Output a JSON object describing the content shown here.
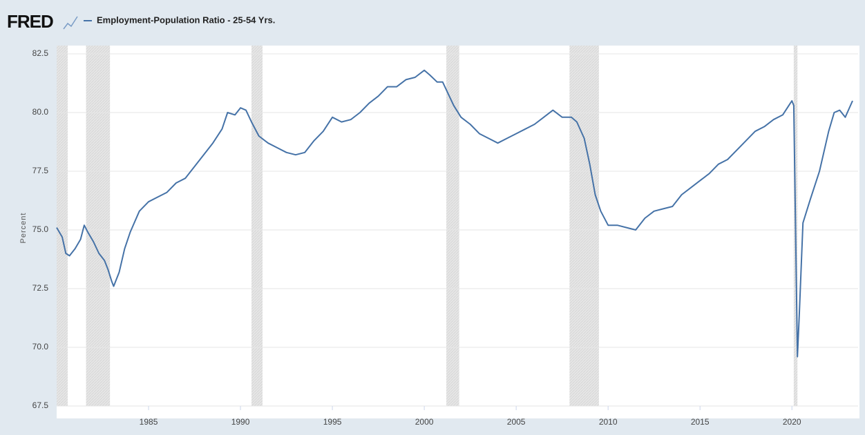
{
  "chart_data": {
    "type": "line",
    "logo": "FRED",
    "ylabel": "Percent",
    "xlim": [
      1980.0,
      2023.6
    ],
    "ylim": [
      67.5,
      82.5
    ],
    "xticks": [
      1985,
      1990,
      1995,
      2000,
      2005,
      2010,
      2015,
      2020
    ],
    "yticks": [
      67.5,
      {
        "value": 70,
        "label": "70.0"
      },
      72.5,
      {
        "value": 75,
        "label": "75.0"
      },
      77.5,
      {
        "value": 80,
        "label": "80.0"
      },
      82.5
    ],
    "grid": true,
    "recessions": [
      [
        1980.0,
        1980.6
      ],
      [
        1981.6,
        1982.9
      ],
      [
        1990.6,
        1991.2
      ],
      [
        2001.2,
        2001.9
      ],
      [
        2007.9,
        2009.5
      ],
      [
        2020.1,
        2020.3
      ]
    ],
    "series": [
      {
        "name": "Employment-Population Ratio - 25-54 Yrs.",
        "color": "#4572a7",
        "x": [
          1980.0,
          1980.3,
          1980.5,
          1980.7,
          1981.0,
          1981.3,
          1981.5,
          1981.7,
          1982.0,
          1982.3,
          1982.6,
          1982.8,
          1983.0,
          1983.1,
          1983.4,
          1983.7,
          1984.0,
          1984.5,
          1985.0,
          1985.5,
          1986.0,
          1986.5,
          1987.0,
          1987.5,
          1988.0,
          1988.5,
          1989.0,
          1989.3,
          1989.7,
          1990.0,
          1990.3,
          1990.6,
          1991.0,
          1991.5,
          1992.0,
          1992.5,
          1993.0,
          1993.5,
          1994.0,
          1994.5,
          1995.0,
          1995.5,
          1996.0,
          1996.5,
          1997.0,
          1997.5,
          1998.0,
          1998.5,
          1999.0,
          1999.5,
          2000.0,
          2000.3,
          2000.7,
          2001.0,
          2001.3,
          2001.6,
          2002.0,
          2002.5,
          2003.0,
          2003.5,
          2004.0,
          2004.5,
          2005.0,
          2005.5,
          2006.0,
          2006.5,
          2007.0,
          2007.5,
          2008.0,
          2008.3,
          2008.7,
          2009.0,
          2009.3,
          2009.6,
          2010.0,
          2010.5,
          2011.0,
          2011.5,
          2012.0,
          2012.5,
          2013.0,
          2013.5,
          2014.0,
          2014.5,
          2015.0,
          2015.5,
          2016.0,
          2016.5,
          2017.0,
          2017.5,
          2018.0,
          2018.5,
          2019.0,
          2019.5,
          2020.0,
          2020.1,
          2020.3,
          2020.4,
          2020.6,
          2021.0,
          2021.5,
          2022.0,
          2022.3,
          2022.6,
          2022.9,
          2023.3
        ],
        "values": [
          75.1,
          74.7,
          74.0,
          73.9,
          74.2,
          74.6,
          75.2,
          74.9,
          74.5,
          74.0,
          73.7,
          73.3,
          72.8,
          72.6,
          73.2,
          74.2,
          74.9,
          75.8,
          76.2,
          76.4,
          76.6,
          77.0,
          77.2,
          77.7,
          78.2,
          78.7,
          79.3,
          80.0,
          79.9,
          80.2,
          80.1,
          79.6,
          79.0,
          78.7,
          78.5,
          78.3,
          78.2,
          78.3,
          78.8,
          79.2,
          79.8,
          79.6,
          79.7,
          80.0,
          80.4,
          80.7,
          81.1,
          81.1,
          81.4,
          81.5,
          81.8,
          81.6,
          81.3,
          81.3,
          80.8,
          80.3,
          79.8,
          79.5,
          79.1,
          78.9,
          78.7,
          78.9,
          79.1,
          79.3,
          79.5,
          79.8,
          80.1,
          79.8,
          79.8,
          79.6,
          78.9,
          77.8,
          76.5,
          75.8,
          75.2,
          75.2,
          75.1,
          75.0,
          75.5,
          75.8,
          75.9,
          76.0,
          76.5,
          76.8,
          77.1,
          77.4,
          77.8,
          78.0,
          78.4,
          78.8,
          79.2,
          79.4,
          79.7,
          79.9,
          80.5,
          80.3,
          69.6,
          71.4,
          75.3,
          76.3,
          77.5,
          79.2,
          80.0,
          80.1,
          79.8,
          80.5
        ]
      }
    ]
  }
}
